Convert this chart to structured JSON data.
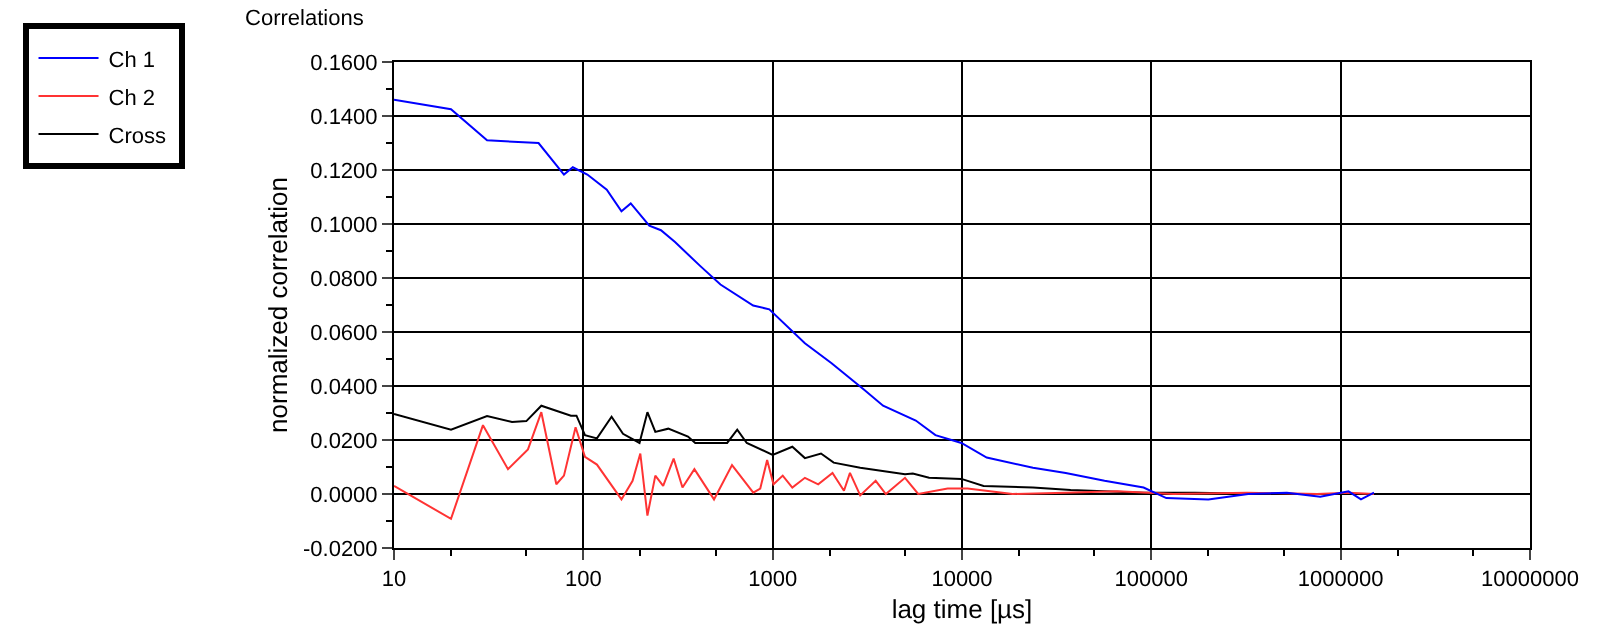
{
  "chart_data": {
    "type": "line",
    "title": "Correlations",
    "xlabel": "lag time [µs]",
    "ylabel": "normalized correlation",
    "log": "x",
    "grid": true,
    "legend": "top left",
    "marker": "none",
    "line_style": "solid",
    "xlim": [
      10,
      10000000
    ],
    "xticks": [
      10,
      100,
      1000,
      10000,
      100000,
      1000000,
      10000000
    ],
    "ylim": [
      -0.02,
      0.16
    ],
    "yticks": [
      {
        "value": -0.02,
        "label": "-0.0200"
      },
      {
        "value": 0,
        "label": "0.0000"
      },
      {
        "value": 0.02,
        "label": "0.0200"
      },
      {
        "value": 0.04,
        "label": "0.0400"
      },
      {
        "value": 0.06,
        "label": "0.0600"
      },
      {
        "value": 0.08,
        "label": "0.0800"
      },
      {
        "value": 0.1,
        "label": "0.1000"
      },
      {
        "value": 0.12,
        "label": "0.1200"
      },
      {
        "value": 0.14,
        "label": "0.1400"
      },
      {
        "value": 0.16,
        "label": "0.1600"
      }
    ],
    "series": [
      {
        "name": "Ch 1",
        "color": "#0000ff",
        "x": [
          10,
          20,
          31,
          58,
          79,
          88,
          105,
          133,
          159,
          178,
          223,
          257,
          305,
          415,
          530,
          789,
          960,
          1480,
          2040,
          3020,
          3830,
          5700,
          7240,
          9930,
          13500,
          23700,
          35300,
          56600,
          91000,
          120000,
          200000,
          325000,
          520000,
          780000,
          1100000,
          1280000,
          1500000
        ],
        "values": [
          0.146,
          0.1425,
          0.131,
          0.13,
          0.1183,
          0.121,
          0.1183,
          0.1127,
          0.1047,
          0.1076,
          0.0994,
          0.0977,
          0.0933,
          0.0844,
          0.0776,
          0.0698,
          0.0684,
          0.0558,
          0.0485,
          0.0388,
          0.0327,
          0.0272,
          0.0218,
          0.0189,
          0.0135,
          0.0097,
          0.0078,
          0.0049,
          0.0024,
          -0.0015,
          -0.002,
          0,
          0.0005,
          -0.001,
          0.001,
          -0.002,
          0.0005
        ]
      },
      {
        "name": "Ch 2",
        "color": "#ff3333",
        "x": [
          10,
          20,
          29.5,
          40,
          51,
          60,
          72,
          79,
          91,
          102,
          118,
          159,
          182,
          200,
          218,
          240,
          264,
          300,
          334,
          386,
          490,
          610,
          790,
          860,
          935,
          1010,
          1130,
          1270,
          1480,
          1740,
          2070,
          2380,
          2560,
          2900,
          3500,
          3960,
          5000,
          5870,
          8400,
          10700,
          18500,
          35000,
          66000,
          131000,
          320000,
          750000,
          1100000,
          1500000
        ],
        "values": [
          0.003,
          -0.0092,
          0.0255,
          0.0092,
          0.0165,
          0.0303,
          0.0036,
          0.0068,
          0.0247,
          0.0138,
          0.0109,
          -0.002,
          0.0049,
          0.015,
          -0.008,
          0.0068,
          0.003,
          0.0131,
          0.0024,
          0.0092,
          -0.002,
          0.0107,
          0.0005,
          0.002,
          0.0126,
          0.0036,
          0.0068,
          0.0024,
          0.006,
          0.0036,
          0.0078,
          0.0012,
          0.0078,
          -0.0005,
          0.0049,
          0,
          0.006,
          0,
          0.002,
          0.002,
          0,
          0.0005,
          0.001,
          0,
          0.0005,
          0,
          0.0005,
          0
        ]
      },
      {
        "name": "Cross",
        "color": "#000000",
        "x": [
          10,
          20,
          31,
          42,
          50,
          60,
          86,
          92,
          102,
          118,
          141,
          162,
          198,
          218,
          240,
          281,
          357,
          390,
          575,
          650,
          730,
          1000,
          1270,
          1480,
          1800,
          2100,
          2900,
          5000,
          5500,
          6700,
          9930,
          13000,
          23700,
          37500,
          91000,
          170000,
          440000,
          1000000,
          1500000
        ],
        "values": [
          0.0296,
          0.0238,
          0.0289,
          0.0267,
          0.027,
          0.0327,
          0.029,
          0.029,
          0.0218,
          0.0206,
          0.0286,
          0.0223,
          0.0189,
          0.0303,
          0.023,
          0.0242,
          0.0213,
          0.0189,
          0.0189,
          0.0238,
          0.0189,
          0.0145,
          0.0175,
          0.0133,
          0.015,
          0.0116,
          0.0097,
          0.0073,
          0.0076,
          0.006,
          0.0056,
          0.003,
          0.0024,
          0.0015,
          0.0005,
          0.0005,
          0,
          0,
          0
        ]
      }
    ]
  }
}
